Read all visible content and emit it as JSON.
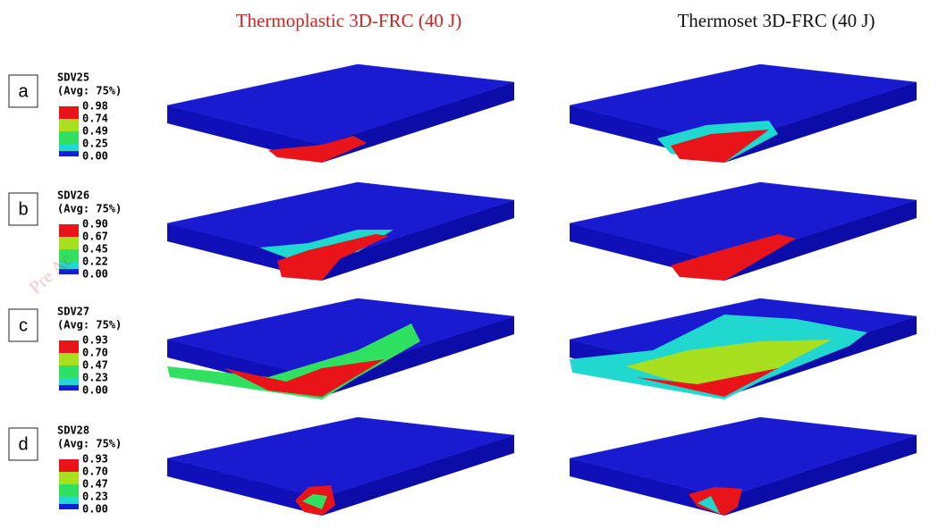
{
  "columns": [
    "Thermoplastic 3D-FRC (40 J)",
    "Thermoset 3D-FRC (40 J)"
  ],
  "watermark": "Pre Ac",
  "rows": [
    {
      "label": "a",
      "legend": {
        "name": "SDV25",
        "avg": "(Avg: 75%)",
        "ticks": [
          "0.98",
          "0.74",
          "0.49",
          "0.25",
          "0.00"
        ]
      }
    },
    {
      "label": "b",
      "legend": {
        "name": "SDV26",
        "avg": "(Avg: 75%)",
        "ticks": [
          "0.90",
          "0.67",
          "0.45",
          "0.22",
          "0.00"
        ]
      }
    },
    {
      "label": "c",
      "legend": {
        "name": "SDV27",
        "avg": "(Avg: 75%)",
        "ticks": [
          "0.93",
          "0.70",
          "0.47",
          "0.23",
          "0.00"
        ]
      }
    },
    {
      "label": "d",
      "legend": {
        "name": "SDV28",
        "avg": "(Avg: 75%)",
        "ticks": [
          "0.93",
          "0.70",
          "0.47",
          "0.23",
          "0.00"
        ]
      }
    }
  ]
}
